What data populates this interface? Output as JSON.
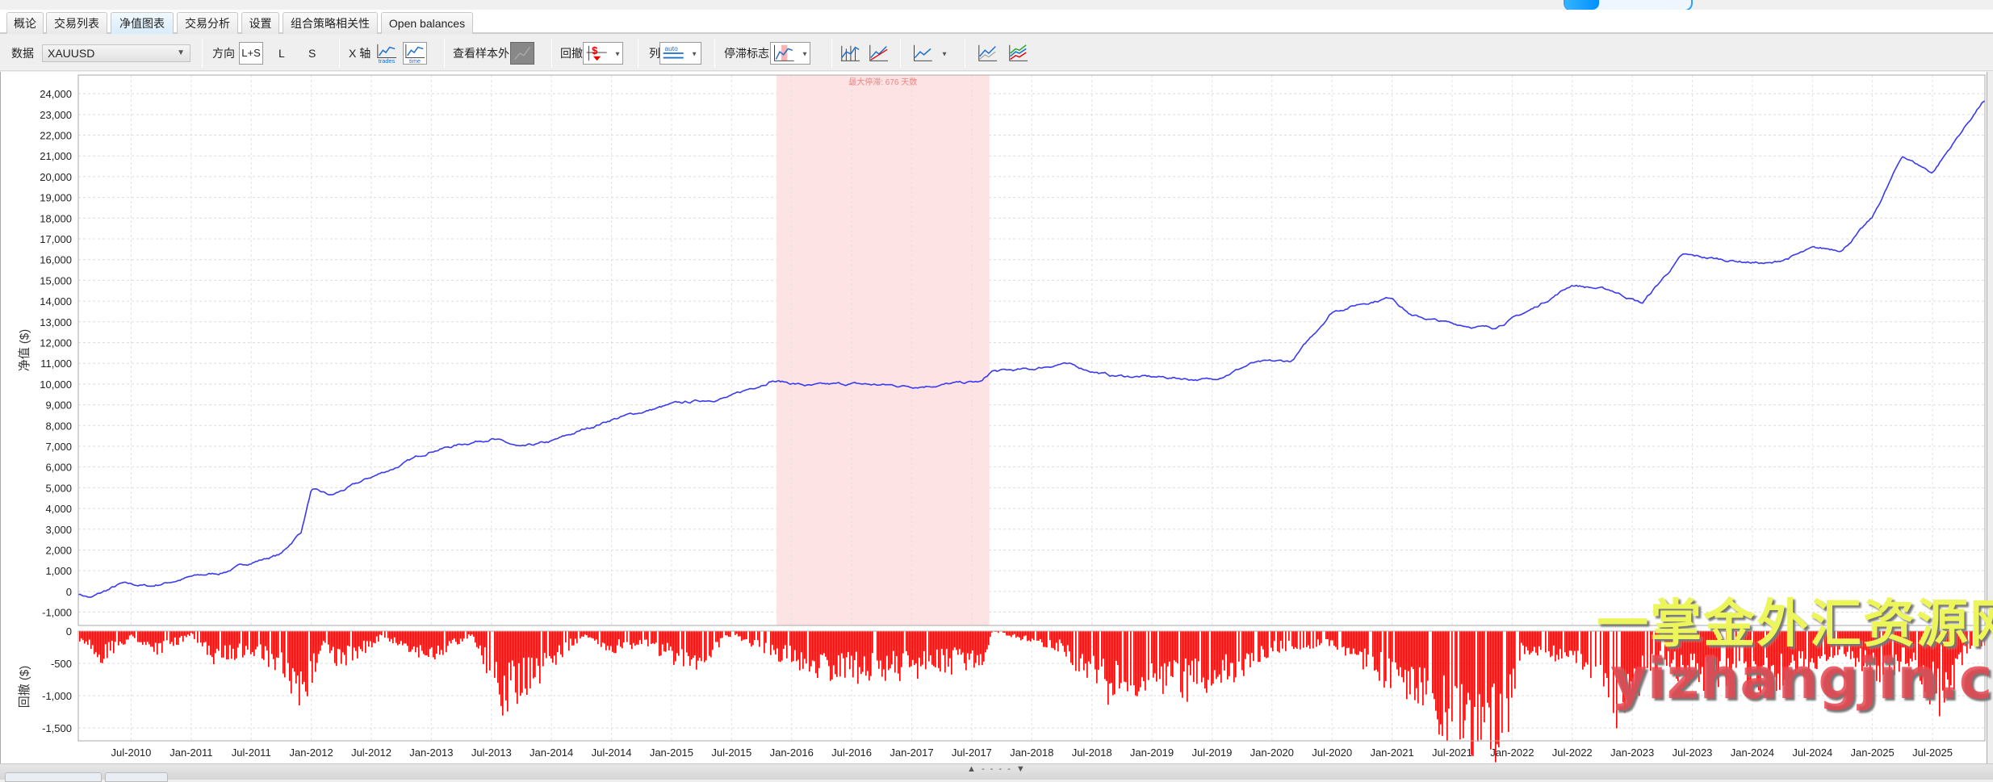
{
  "tabs": [
    {
      "label": "概论",
      "active": false
    },
    {
      "label": "交易列表",
      "active": false
    },
    {
      "label": "净值图表",
      "active": true
    },
    {
      "label": "交易分析",
      "active": false
    },
    {
      "label": "设置",
      "active": false
    },
    {
      "label": "组合策略相关性",
      "active": false
    },
    {
      "label": "Open balances",
      "active": false
    }
  ],
  "toolbar": {
    "data_label": "数据",
    "data_value": "XAUUSD",
    "direction_label": "方向",
    "direction_options": [
      "L+S",
      "L",
      "S"
    ],
    "direction_selected": "L+S",
    "xaxis_label": "X 轴",
    "xaxis_trades": "trades",
    "xaxis_time": "time",
    "out_of_sample_label": "查看样本外",
    "drawdown_label": "回撤",
    "columns_label": "列",
    "columns_icon_text": "auto",
    "stagnation_label": "停滞标志",
    "icons": [
      "equity-bars-icon",
      "equity-red-line-icon",
      "equity-line-icon",
      "equity-compare-icon",
      "equity-multi-icon"
    ]
  },
  "colors": {
    "equity_line": "#3a3af0",
    "drawdown_bars": "#ff0000",
    "stagnation_band": "#fde3e3",
    "stagnation_text": "#f08080",
    "active_tab": "#d8ecfb"
  },
  "chart_data": [
    {
      "type": "line",
      "ylabel": "净值 ($)",
      "ylim": [
        -1640,
        24900
      ],
      "yticks": [
        "24,000",
        "23,000",
        "22,000",
        "21,000",
        "20,000",
        "19,000",
        "18,000",
        "17,000",
        "16,000",
        "15,000",
        "14,000",
        "13,000",
        "12,000",
        "11,000",
        "10,000",
        "9,000",
        "8,000",
        "7,000",
        "6,000",
        "5,000",
        "4,000",
        "3,000",
        "2,000",
        "1,000",
        "0",
        "-1,000"
      ],
      "ytick_values": [
        24000,
        23000,
        22000,
        21000,
        20000,
        19000,
        18000,
        17000,
        16000,
        15000,
        14000,
        13000,
        12000,
        11000,
        10000,
        9000,
        8000,
        7000,
        6000,
        5000,
        4000,
        3000,
        2000,
        1000,
        0,
        -1000
      ],
      "xlim": [
        "2010-01",
        "2025-12"
      ],
      "xticks": [
        "Jul-2010",
        "Jan-2011",
        "Jul-2011",
        "Jan-2012",
        "Jul-2012",
        "Jan-2013",
        "Jul-2013",
        "Jan-2014",
        "Jul-2014",
        "Jan-2015",
        "Jul-2015",
        "Jan-2016",
        "Jul-2016",
        "Jan-2017",
        "Jul-2017",
        "Jan-2018",
        "Jul-2018",
        "Jan-2019",
        "Jul-2019",
        "Jan-2020",
        "Jul-2020",
        "Jan-2021",
        "Jul-2021",
        "Jan-2022",
        "Jul-2022",
        "Jan-2023",
        "Jul-2023",
        "Jan-2024",
        "Jul-2024",
        "Jan-2025",
        "Jul-2025"
      ],
      "grid": true,
      "stagnation": {
        "label": "最大停滞: 676 天数",
        "start": "2015-11",
        "end": "2017-09"
      },
      "x": [
        "2010-01",
        "2010-03",
        "2010-06",
        "2010-09",
        "2011-01",
        "2011-04",
        "2011-07",
        "2011-10",
        "2011-12",
        "2012-01",
        "2012-03",
        "2012-07",
        "2012-10",
        "2013-01",
        "2013-05",
        "2013-07",
        "2013-10",
        "2014-01",
        "2014-07",
        "2015-01",
        "2015-04",
        "2015-07",
        "2015-11",
        "2016-03",
        "2016-07",
        "2017-01",
        "2017-08",
        "2017-09",
        "2018-01",
        "2018-04",
        "2018-09",
        "2019-03",
        "2019-07",
        "2019-11",
        "2020-03",
        "2020-07",
        "2020-10",
        "2021-01",
        "2021-03",
        "2021-07",
        "2021-11",
        "2022-03",
        "2022-07",
        "2022-11",
        "2023-02",
        "2023-06",
        "2023-10",
        "2024-03",
        "2024-07",
        "2024-10",
        "2025-01",
        "2025-04",
        "2025-07",
        "2025-12"
      ],
      "values": [
        0,
        -300,
        350,
        250,
        700,
        900,
        1400,
        1800,
        2900,
        4900,
        4600,
        5500,
        6100,
        6800,
        7200,
        7400,
        6900,
        7200,
        8300,
        9000,
        9200,
        9400,
        10200,
        9900,
        10000,
        9900,
        10100,
        10600,
        10700,
        11000,
        10400,
        10300,
        10200,
        11000,
        11100,
        13500,
        13900,
        14200,
        13300,
        12900,
        12700,
        13600,
        14800,
        14500,
        13900,
        16200,
        16000,
        15800,
        16500,
        16500,
        18000,
        21000,
        20200,
        23600
      ]
    },
    {
      "type": "bar",
      "ylabel": "回撤 ($)",
      "ylim": [
        -1700,
        0
      ],
      "yticks": [
        "0",
        "-500",
        "-1,000",
        "-1,500"
      ],
      "ytick_values": [
        0,
        -500,
        -1000,
        -1500
      ],
      "x": [
        "2010-02",
        "2010-04",
        "2010-07",
        "2010-10",
        "2011-01",
        "2011-03",
        "2011-07",
        "2011-10",
        "2011-12",
        "2012-02",
        "2012-04",
        "2012-08",
        "2013-01",
        "2013-05",
        "2013-08",
        "2013-11",
        "2014-04",
        "2014-07",
        "2014-10",
        "2015-03",
        "2015-07",
        "2015-11",
        "2016-04",
        "2016-09",
        "2017-03",
        "2017-08",
        "2017-09",
        "2018-04",
        "2018-08",
        "2019-01",
        "2019-05",
        "2019-09",
        "2020-01",
        "2020-07",
        "2020-11",
        "2021-04",
        "2021-08",
        "2021-12",
        "2022-02",
        "2022-08",
        "2022-11",
        "2023-03",
        "2023-08",
        "2024-01",
        "2024-05",
        "2024-10",
        "2025-01",
        "2025-05",
        "2025-08",
        "2025-10",
        "2025-12"
      ],
      "values": [
        -150,
        -450,
        -100,
        -350,
        -50,
        -500,
        -300,
        -700,
        -1250,
        -200,
        -550,
        -100,
        -450,
        -50,
        -1100,
        -800,
        -100,
        -300,
        -200,
        -600,
        -50,
        -400,
        -650,
        -700,
        -600,
        -500,
        0,
        -300,
        -950,
        -1000,
        -900,
        -700,
        -300,
        -200,
        -600,
        -1200,
        -1600,
        -1800,
        -300,
        -500,
        -1400,
        -600,
        -800,
        -900,
        -700,
        -300,
        -700,
        -500,
        -1300,
        -400,
        -200
      ]
    }
  ],
  "watermark": {
    "line1": "一掌金外汇资源网",
    "line2": "yizhangjin.com"
  }
}
